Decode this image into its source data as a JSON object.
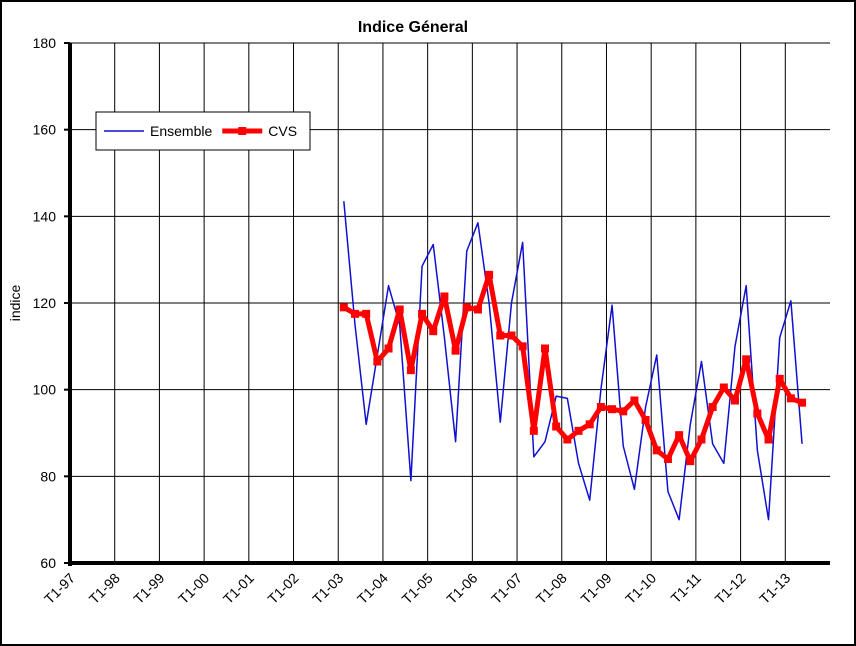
{
  "chart_data": {
    "type": "line",
    "title": "Indice Géneral",
    "y_label": "indice",
    "categories": [
      "T1-97",
      null,
      null,
      null,
      "T1-98",
      null,
      null,
      null,
      "T1-99",
      null,
      null,
      null,
      "T1-00",
      null,
      null,
      null,
      "T1-01",
      null,
      null,
      null,
      "T1-02",
      null,
      null,
      null,
      "T1-03",
      null,
      null,
      null,
      "T1-04",
      null,
      null,
      null,
      "T1-05",
      null,
      null,
      null,
      "T1-06",
      null,
      null,
      null,
      "T1-07",
      null,
      null,
      null,
      "T1-08",
      null,
      null,
      null,
      "T1-09",
      null,
      null,
      null,
      "T1-10",
      null,
      null,
      null,
      "T1-11",
      null,
      null,
      null,
      "T1-12",
      null,
      null,
      null,
      "T1-13",
      null,
      null,
      null
    ],
    "series": [
      {
        "name": "Ensemble",
        "color": "#1010d0",
        "width": 1.5,
        "markers": false,
        "values": [
          null,
          null,
          null,
          null,
          null,
          null,
          null,
          null,
          null,
          null,
          null,
          null,
          null,
          null,
          null,
          null,
          null,
          null,
          null,
          null,
          null,
          null,
          null,
          null,
          143.5,
          115,
          92,
          108,
          124,
          115,
          79,
          128.5,
          133.5,
          112,
          88,
          132,
          138.5,
          120,
          92.5,
          120,
          134,
          84.5,
          88,
          98.5,
          98,
          83,
          74.5,
          100,
          119.5,
          87,
          77,
          96,
          108,
          76.5,
          70,
          92,
          106.5,
          87.5,
          83,
          110,
          124,
          86,
          70,
          112,
          120.5,
          87.5,
          null,
          null
        ]
      },
      {
        "name": "CVS",
        "color": "#ff0000",
        "width": 5,
        "markers": true,
        "values": [
          null,
          null,
          null,
          null,
          null,
          null,
          null,
          null,
          null,
          null,
          null,
          null,
          null,
          null,
          null,
          null,
          null,
          null,
          null,
          null,
          null,
          null,
          null,
          null,
          119,
          117.5,
          117.5,
          106.5,
          109.5,
          118.5,
          104.5,
          117.5,
          113.5,
          121.5,
          109,
          119,
          118.5,
          126.5,
          112.5,
          112.5,
          110,
          90.5,
          109.5,
          91.5,
          88.5,
          90.5,
          92,
          96,
          95.5,
          95,
          97.5,
          93,
          86,
          84,
          89.5,
          83.5,
          88.5,
          96,
          100.5,
          97.5,
          107,
          94.5,
          88.5,
          102.5,
          98,
          97,
          null,
          null
        ]
      }
    ],
    "ylim": [
      60,
      180
    ],
    "yticks": [
      60,
      80,
      100,
      120,
      140,
      160,
      180
    ],
    "grid": true,
    "legend": "upper left"
  }
}
